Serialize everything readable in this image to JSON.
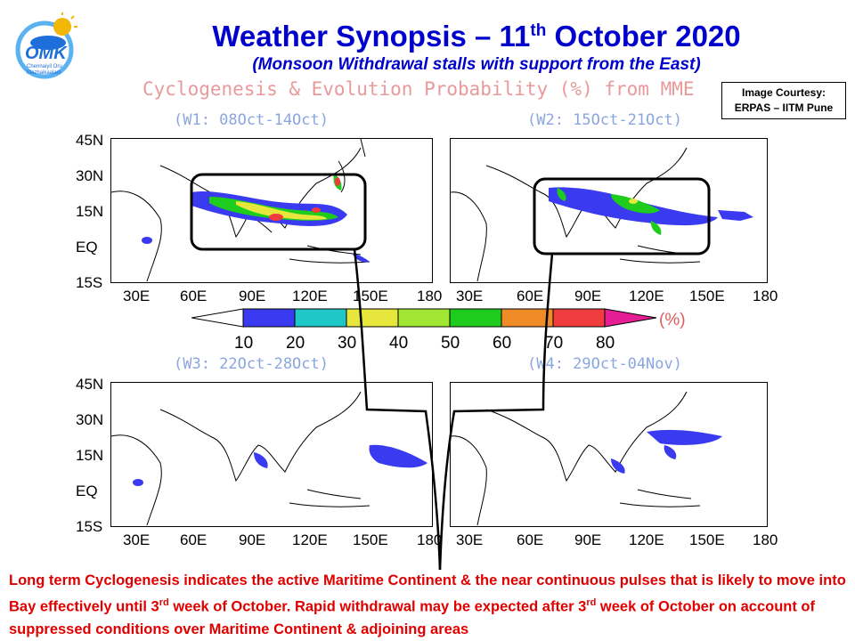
{
  "header": {
    "title_pre": "Weather Synopsis – 11",
    "title_sup": "th",
    "title_post": " October 2020",
    "subtitle": "(Monsoon Withdrawal stalls with support from the East)",
    "main_heading": "Cyclogenesis & Evolution Probability (%) from MME"
  },
  "logo": {
    "text": "OMK",
    "tagline_1": "Chennaiyil Oru",
    "tagline_2": "Mazhaikaalam",
    "colors": [
      "#1e6fd9",
      "#f2b705",
      "#5bb2f0"
    ]
  },
  "courtesy": {
    "line1": "Image Courtesy:",
    "line2": "ERPAS – IITM Pune"
  },
  "panels": [
    {
      "label": "(W1: 08Oct-14Oct)"
    },
    {
      "label": "(W2: 15Oct-21Oct)"
    },
    {
      "label": "(W3: 22Oct-28Oct)"
    },
    {
      "label": "(W4: 29Oct-04Nov)"
    }
  ],
  "lat_ticks": [
    "45N",
    "30N",
    "15N",
    "EQ",
    "15S"
  ],
  "lon_ticks_left": [
    "30E",
    "60E",
    "90E",
    "120E",
    "150E",
    "180"
  ],
  "lon_ticks_right": [
    "30E",
    "60E",
    "90E",
    "120E",
    "150E",
    "180"
  ],
  "colorbar": {
    "labels": [
      "10",
      "20",
      "30",
      "40",
      "50",
      "60",
      "70",
      "80"
    ],
    "unit": "(%)",
    "colors": [
      "#ffffff",
      "#3a3af0",
      "#1ec8c8",
      "#e6e63c",
      "#a0e632",
      "#1ecc1e",
      "#f08c28",
      "#f03c3c",
      "#e61e96"
    ]
  },
  "bottom_text": {
    "p1": "Long term Cyclogenesis indicates the active Maritime Continent & the near continuous pulses that is likely to move into Bay effectively until 3",
    "s1": "rd",
    "p2": " week of October. Rapid withdrawal may be expected after 3",
    "s2": "rd",
    "p3": " week of October on account of suppressed conditions over Maritime Continent & adjoining  areas"
  }
}
